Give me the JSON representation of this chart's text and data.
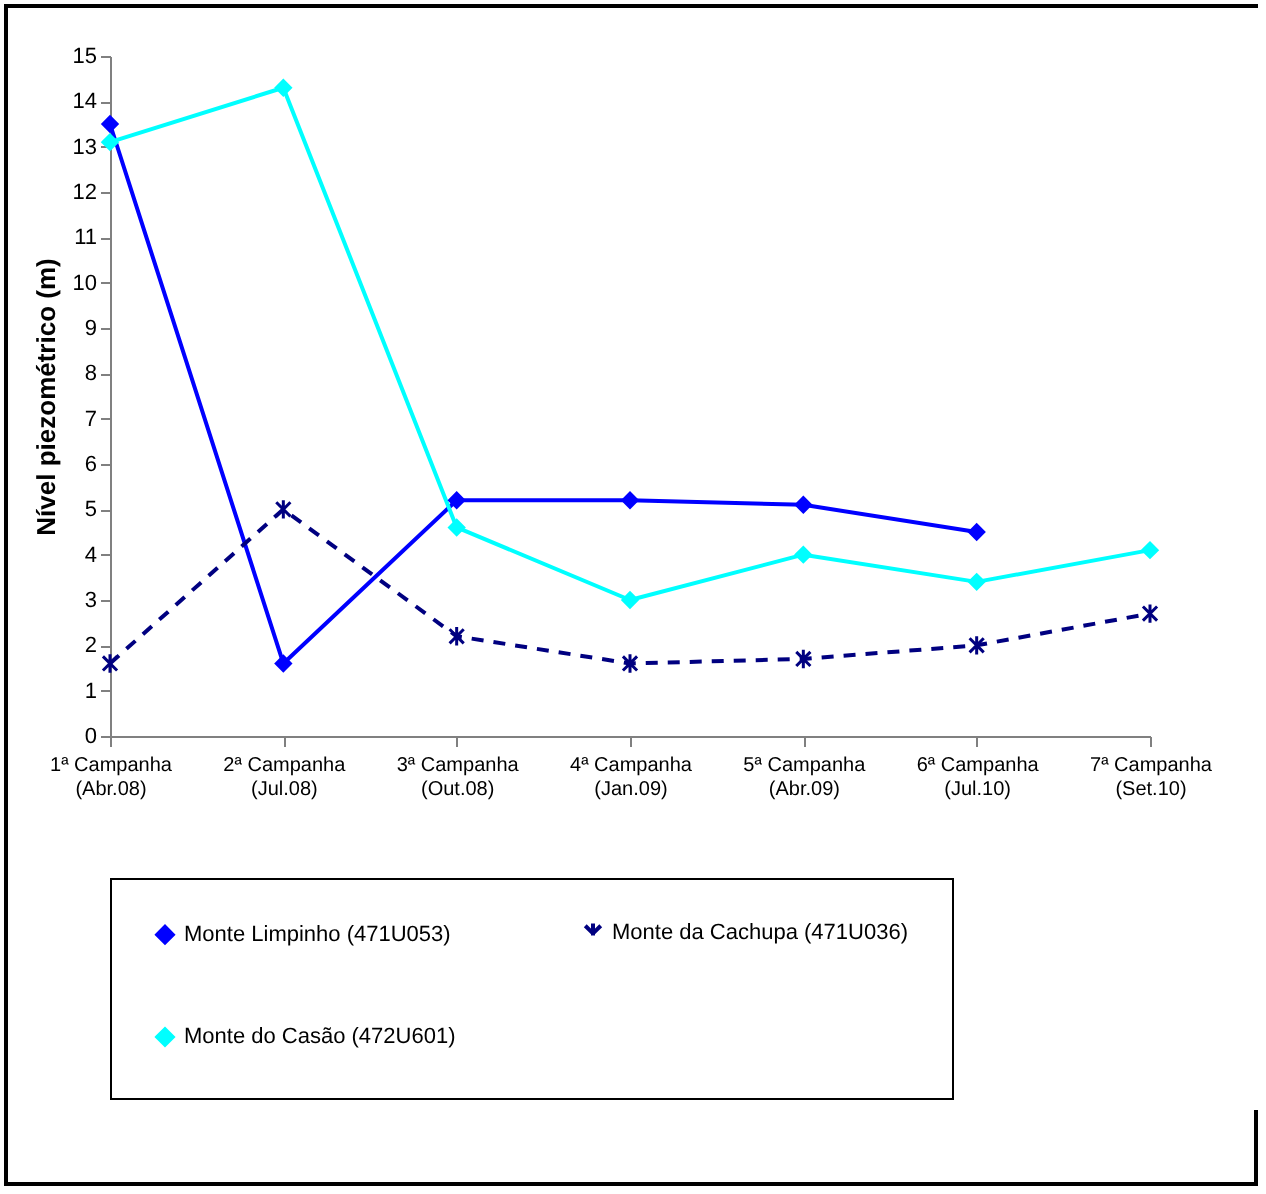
{
  "chart_data": {
    "type": "line",
    "ylabel": "Nível piezométrico (m)",
    "categories": [
      "1ª Campanha\n(Abr.08)",
      "2ª Campanha\n(Jul.08)",
      "3ª Campanha\n(Out.08)",
      "4ª Campanha\n(Jan.09)",
      "5ª Campanha\n(Abr.09)",
      "6ª Campanha\n(Jul.10)",
      "7ª Campanha\n(Set.10)"
    ],
    "series": [
      {
        "name": "Monte Limpinho (471U053)",
        "color": "#0000ff",
        "marker": "diamond",
        "line_style": "solid",
        "values": [
          13.5,
          1.6,
          5.2,
          5.2,
          5.1,
          4.5,
          null
        ]
      },
      {
        "name": "Monte da Cachupa (471U036)",
        "color": "#000080",
        "marker": "cross",
        "line_style": "dashed",
        "values": [
          1.6,
          5.0,
          2.2,
          1.6,
          1.7,
          2.0,
          2.7
        ]
      },
      {
        "name": "Monte do Casão (472U601)",
        "color": "#00ffff",
        "marker": "diamond",
        "line_style": "solid",
        "values": [
          13.1,
          14.3,
          4.6,
          3.0,
          4.0,
          3.4,
          4.1
        ]
      }
    ],
    "ylim": [
      0,
      15
    ],
    "yticks": [
      0,
      1,
      2,
      3,
      4,
      5,
      6,
      7,
      8,
      9,
      10,
      11,
      12,
      13,
      14,
      15
    ],
    "grid": false,
    "legend": "bottom"
  }
}
